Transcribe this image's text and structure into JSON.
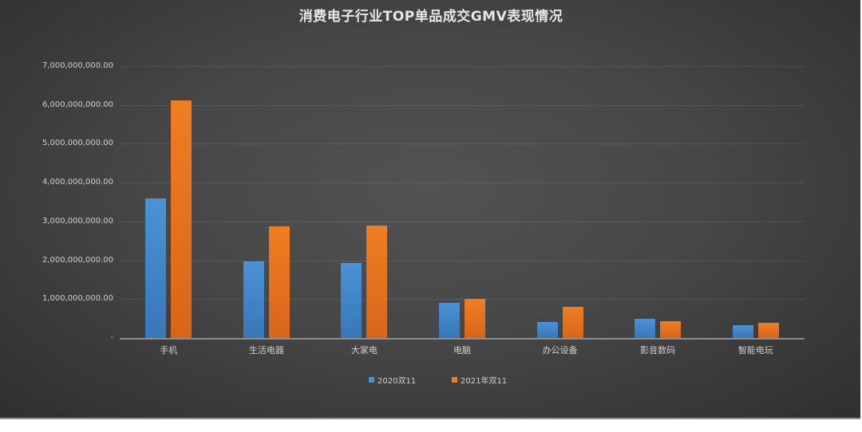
{
  "chart_data": {
    "type": "bar",
    "title": "消费电子行业TOP单品成交GMV表现情况",
    "xlabel": "",
    "ylabel": "",
    "categories": [
      "手机",
      "生活电器",
      "大家电",
      "电脑",
      "办公设备",
      "影音数码",
      "智能电玩"
    ],
    "series": [
      {
        "name": "2020双11",
        "color": "#4a93d6",
        "values": [
          3590000000,
          1970000000,
          1930000000,
          900000000,
          410000000,
          490000000,
          330000000
        ]
      },
      {
        "name": "2021年双11",
        "color": "#ef7d22",
        "values": [
          6120000000,
          2870000000,
          2900000000,
          1010000000,
          800000000,
          430000000,
          390000000
        ]
      }
    ],
    "ylim": [
      0,
      7000000000
    ],
    "yticks": [
      0,
      1000000000,
      2000000000,
      3000000000,
      4000000000,
      5000000000,
      6000000000,
      7000000000
    ],
    "ytick_labels": [
      "-",
      "1,000,000,000.00",
      "2,000,000,000.00",
      "3,000,000,000.00",
      "4,000,000,000.00",
      "5,000,000,000.00",
      "6,000,000,000.00",
      "7,000,000,000.00"
    ],
    "grid": true,
    "legend_position": "bottom"
  },
  "title": "消费电子行业TOP单品成交GMV表现情况",
  "legend": [
    {
      "label": "2020双11",
      "color": "#4a93d6"
    },
    {
      "label": "2021年双11",
      "color": "#ef7d22"
    }
  ]
}
